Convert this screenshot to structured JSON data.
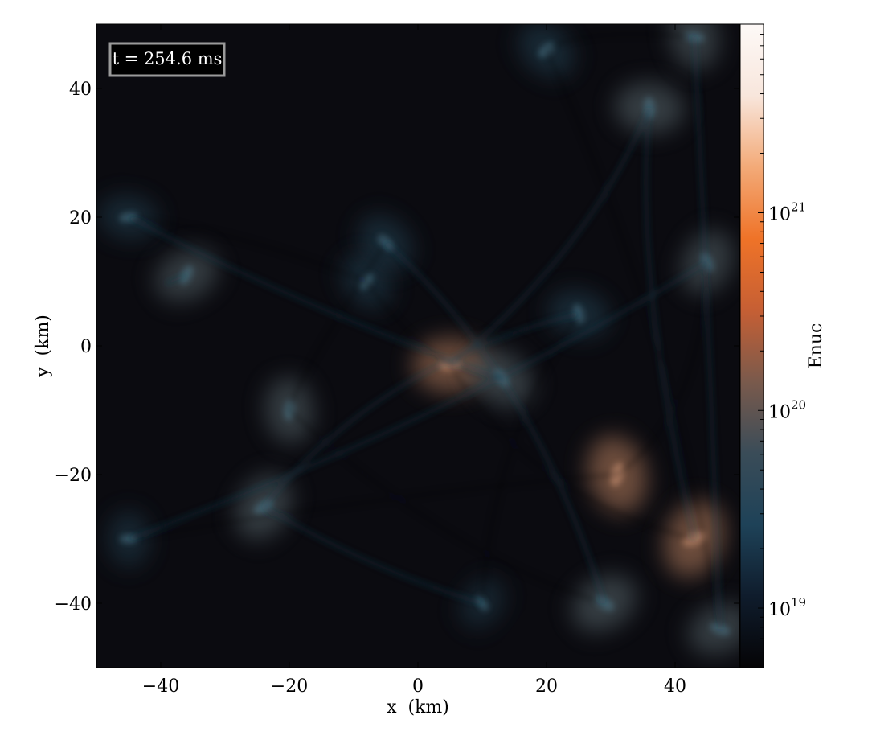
{
  "chart_data": {
    "type": "heatmap",
    "title": "",
    "xlabel": "x  (km)",
    "ylabel": "y  (km)",
    "xlim": [
      -50,
      50
    ],
    "ylim": [
      -50,
      50
    ],
    "x_ticks": [
      -40,
      -20,
      0,
      20,
      40
    ],
    "x_tick_labels": [
      "−40",
      "−20",
      "0",
      "20",
      "40"
    ],
    "y_ticks": [
      -40,
      -20,
      0,
      20,
      40
    ],
    "y_tick_labels": [
      "−40",
      "−20",
      "0",
      "20",
      "40"
    ],
    "annotation": "t = 254.6 ms",
    "colorbar": {
      "label": "Enuc",
      "scale": "log",
      "range": [
        5e+18,
        9e+21
      ],
      "ticks": [
        1e+19,
        1e+20,
        1e+21
      ],
      "tick_labels": [
        {
          "base": "10",
          "exp": "19"
        },
        {
          "base": "10",
          "exp": "20"
        },
        {
          "base": "10",
          "exp": "21"
        }
      ],
      "colors": [
        "#050406",
        "#0f1c2c",
        "#1e4258",
        "#3a4c58",
        "#7a5a4c",
        "#c65f34",
        "#ef7328",
        "#f3aa78",
        "#f8e6dc",
        "#fdf9f7"
      ]
    },
    "hotspots": [
      {
        "x": 5,
        "y": -3,
        "v": 0.55
      },
      {
        "x": 13,
        "y": -5,
        "v": 0.45
      },
      {
        "x": 31,
        "y": -20,
        "v": 0.6
      },
      {
        "x": 43,
        "y": -30,
        "v": 0.6
      },
      {
        "x": 29,
        "y": -40,
        "v": 0.45
      },
      {
        "x": 36,
        "y": 37,
        "v": 0.45
      },
      {
        "x": 20,
        "y": 46,
        "v": 0.35
      },
      {
        "x": 43,
        "y": 48,
        "v": 0.4
      },
      {
        "x": 45,
        "y": 13,
        "v": 0.4
      },
      {
        "x": -36,
        "y": 11,
        "v": 0.4
      },
      {
        "x": -45,
        "y": 20,
        "v": 0.3
      },
      {
        "x": -5,
        "y": 16,
        "v": 0.35
      },
      {
        "x": -20,
        "y": -10,
        "v": 0.4
      },
      {
        "x": -24,
        "y": -25,
        "v": 0.45
      },
      {
        "x": 47,
        "y": -44,
        "v": 0.4
      },
      {
        "x": 25,
        "y": 5,
        "v": 0.35
      },
      {
        "x": -8,
        "y": 10,
        "v": 0.3
      },
      {
        "x": -45,
        "y": -30,
        "v": 0.25
      },
      {
        "x": 10,
        "y": -40,
        "v": 0.2
      }
    ]
  }
}
